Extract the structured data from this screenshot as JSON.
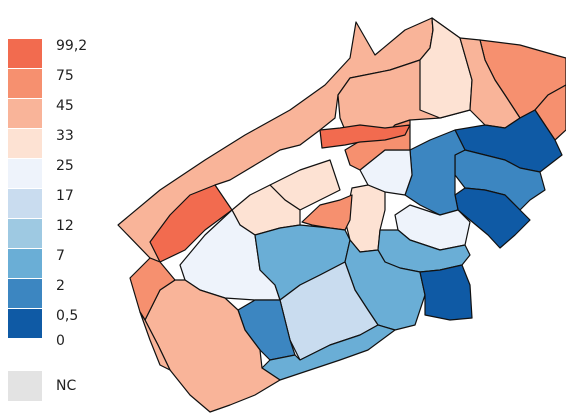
{
  "legend": {
    "classes": [
      {
        "label": "99,2",
        "color": "#f26b4f"
      },
      {
        "label": "75",
        "color": "#f6906f"
      },
      {
        "label": "45",
        "color": "#f9b499"
      },
      {
        "label": "33",
        "color": "#fde2d3"
      },
      {
        "label": "25",
        "color": "#eef3fb"
      },
      {
        "label": "17",
        "color": "#c9dcef"
      },
      {
        "label": "12",
        "color": "#9ec9e2"
      },
      {
        "label": "7",
        "color": "#6aaed6"
      },
      {
        "label": "2",
        "color": "#3c86c1"
      },
      {
        "label": "0,5",
        "color": "#0f5aa5"
      },
      {
        "label": "0",
        "color": ""
      }
    ],
    "nc": {
      "label": "NC",
      "color": "#e3e3e3"
    }
  },
  "map": {
    "outline_color": "#111111",
    "zone_palette": [
      "#f26b4f",
      "#f6906f",
      "#f9b499",
      "#fde2d3",
      "#eef3fb",
      "#c9dcef",
      "#6aaed6",
      "#3c86c1",
      "#0f5aa5"
    ]
  }
}
